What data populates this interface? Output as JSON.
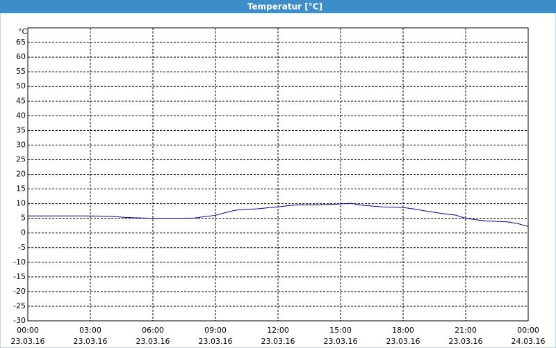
{
  "chart_data": {
    "type": "line",
    "title": "Temperatur [°C]",
    "y_label": "°C",
    "x": [
      0,
      1,
      2,
      3,
      4,
      4.5,
      5,
      6,
      7,
      8,
      8.5,
      9,
      9.5,
      10,
      10.5,
      11,
      11.5,
      12,
      12.5,
      13,
      14,
      15,
      15.5,
      16,
      17,
      18,
      18.5,
      19,
      20,
      20.5,
      21,
      21.5,
      22,
      23,
      23.5,
      24
    ],
    "series": [
      {
        "color": "#00008b",
        "values": [
          5.8,
          5.8,
          5.8,
          5.8,
          5.7,
          5.4,
          5.2,
          5,
          5,
          5.1,
          5.6,
          6,
          7,
          7.8,
          8.1,
          8.2,
          8.6,
          8.9,
          9.3,
          9.6,
          9.6,
          9.9,
          10.1,
          9.5,
          8.9,
          8.7,
          8.2,
          7.6,
          6.5,
          6.1,
          5,
          4.5,
          4.1,
          3.8,
          3.2,
          2.2
        ]
      }
    ],
    "xlim": [
      0,
      24
    ],
    "xticks": [
      {
        "value": 0,
        "label": "00:00"
      },
      {
        "value": 3,
        "label": "03:00"
      },
      {
        "value": 6,
        "label": "06:00"
      },
      {
        "value": 9,
        "label": "09:00"
      },
      {
        "value": 12,
        "label": "12:00"
      },
      {
        "value": 15,
        "label": "15:00"
      },
      {
        "value": 18,
        "label": "18:00"
      },
      {
        "value": 21,
        "label": "21:00"
      },
      {
        "value": 24,
        "label": "00:00"
      }
    ],
    "xtick_dates": [
      "23.03.16",
      "23.03.16",
      "23.03.16",
      "23.03.16",
      "23.03.16",
      "23.03.16",
      "23.03.16",
      "23.03.16",
      "24.03.16"
    ],
    "ylim": [
      -30,
      70
    ],
    "yticks": [
      -30,
      -25,
      -20,
      -15,
      -10,
      -5,
      0,
      5,
      10,
      15,
      20,
      25,
      30,
      35,
      40,
      45,
      50,
      55,
      60,
      65
    ],
    "grid": true
  }
}
